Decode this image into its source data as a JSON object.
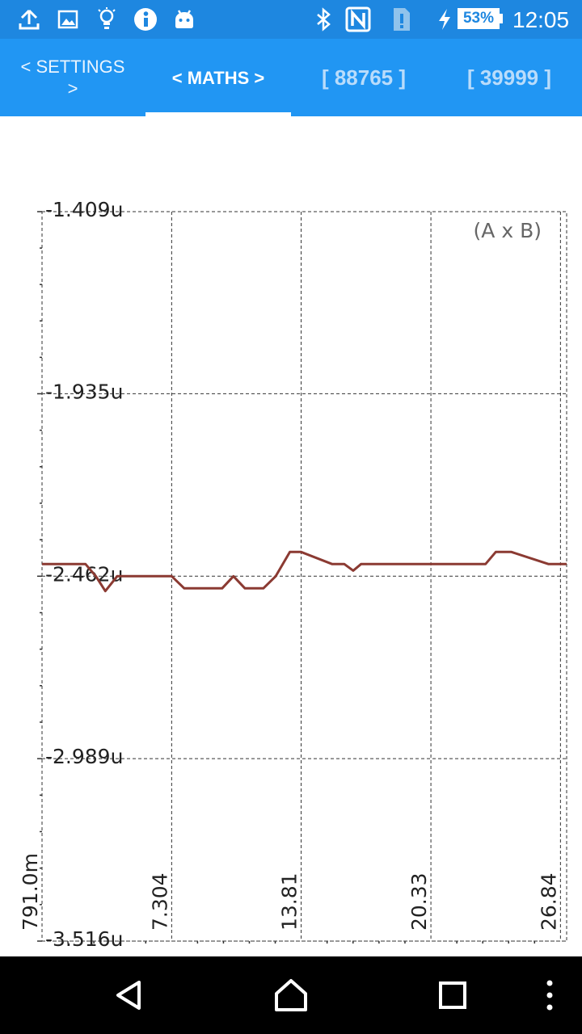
{
  "status_bar": {
    "time": "12:05",
    "battery": "53%",
    "icons": [
      "upload-icon",
      "image-icon",
      "lightbulb-icon",
      "info-icon",
      "android-icon",
      "bluetooth-icon",
      "nfc-icon",
      "sim-alert-icon",
      "charging-icon",
      "battery-icon"
    ]
  },
  "tabs": [
    {
      "label": "< SETTINGS\n>",
      "active": false
    },
    {
      "label": "< MATHS >",
      "active": true
    },
    {
      "label": "[ 88765 ]",
      "active": false
    },
    {
      "label": "[ 39999 ]",
      "active": false
    }
  ],
  "chart": {
    "label": "(A x B)",
    "y_ticks": [
      "-1.409u",
      "-1.935u",
      "-2.462u",
      "-2.989u",
      "-3.516u"
    ],
    "x_ticks": [
      "791.0m",
      "7.304",
      "13.81",
      "20.33",
      "26.84"
    ],
    "colors": {
      "trace": "#8b3a32",
      "grid": "#333333",
      "tick_text": "#222222",
      "label": "#666666"
    }
  },
  "chart_data": {
    "type": "line",
    "title": "",
    "series": [
      {
        "name": "(A x B)",
        "color": "#8b3a32",
        "x": [
          0.791,
          2.302,
          2.978,
          3.495,
          3.97,
          4.567,
          7.304,
          7.935,
          9.841,
          10.409,
          10.984,
          11.91,
          12.531,
          13.244,
          13.81,
          15.373,
          15.98,
          16.429,
          16.817,
          23.072,
          23.59,
          24.376,
          26.243,
          26.587,
          26.84,
          27.15
        ],
        "y": [
          -2.427,
          -2.427,
          -2.427,
          -2.462,
          -2.505,
          -2.462,
          -2.462,
          -2.497,
          -2.497,
          -2.462,
          -2.497,
          -2.497,
          -2.462,
          -2.392,
          -2.392,
          -2.427,
          -2.427,
          -2.446,
          -2.427,
          -2.427,
          -2.392,
          -2.392,
          -2.427,
          -2.427,
          -2.427,
          -2.427
        ]
      }
    ],
    "xlabel": "",
    "ylabel": "",
    "ylim": [
      -3.516,
      -1.409
    ],
    "xlim": [
      0.791,
      27.15
    ],
    "x_ticks": [
      0.791,
      7.304,
      13.81,
      20.33,
      26.84
    ],
    "y_ticks": [
      -1.409,
      -1.935,
      -2.462,
      -2.989,
      -3.516
    ],
    "y_unit": "u",
    "grid": true
  },
  "nav_bar": {
    "icons": [
      "back-icon",
      "home-icon",
      "recents-icon",
      "more-options-icon"
    ]
  }
}
